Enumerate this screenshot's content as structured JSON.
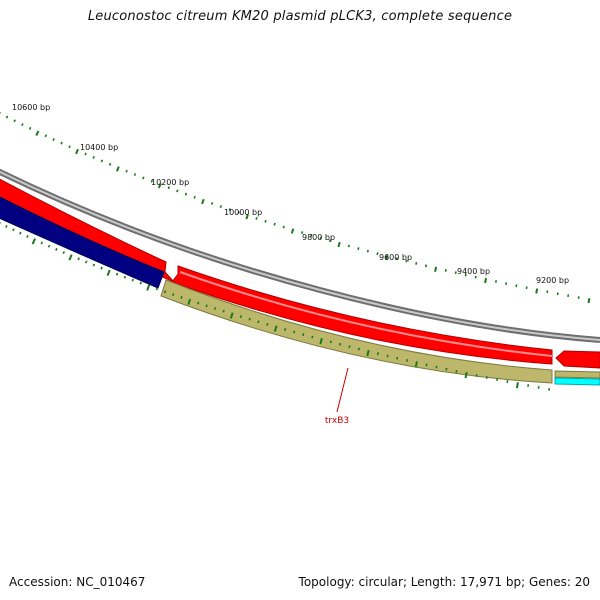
{
  "title": "Leuconostoc citreum KM20 plasmid pLCK3, complete sequence",
  "footer": {
    "accession": "Accession: NC_010467",
    "topology": "Topology: circular; Length: 17,971 bp; Genes: 20"
  },
  "ruler": {
    "labels": [
      {
        "text": "10600 bp",
        "bp": 10600
      },
      {
        "text": "10400 bp",
        "bp": 10400
      },
      {
        "text": "10200 bp",
        "bp": 10200
      },
      {
        "text": "10000 bp",
        "bp": 10000
      },
      {
        "text": "9800 bp",
        "bp": 9800
      },
      {
        "text": "9600 bp",
        "bp": 9600
      },
      {
        "text": "9400 bp",
        "bp": 9400
      },
      {
        "text": "9200 bp",
        "bp": 9200
      }
    ]
  },
  "gene_labels": [
    {
      "text": "trxB3",
      "color": "#cc0000"
    }
  ],
  "colors": {
    "backbone": "#808080",
    "forward_gene": "#ff0000",
    "reverse_gene_dark": "#000080",
    "reverse_gene_olive": "#bdb76b",
    "reverse_gene_cyan": "#00ffff",
    "ticks": "#1a7a1a",
    "label": "#cc0000"
  }
}
